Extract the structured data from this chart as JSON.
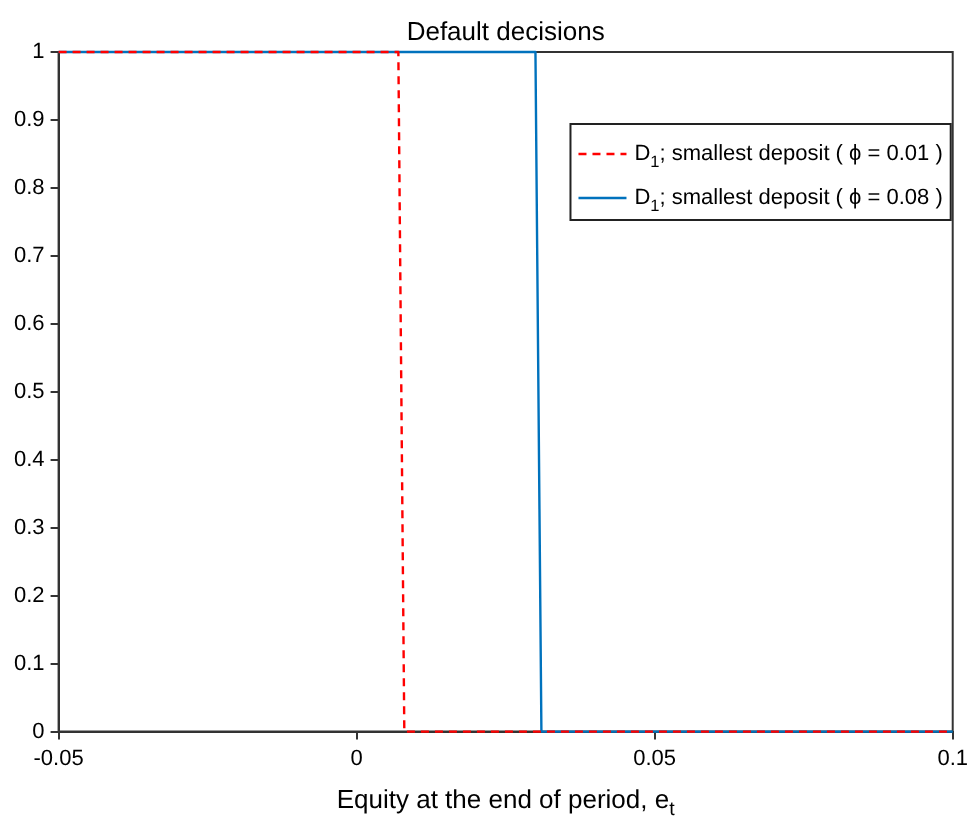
{
  "chart_data": {
    "type": "line",
    "title": "Default decisions",
    "xlabel": "Equity at the end of period, e$_{t}$",
    "series": [
      {
        "name": "D$_{1}$; smallest deposit ( ϕ = 0.01 )",
        "color": "#ff0000",
        "line_style": "dashed",
        "x": [
          -0.05,
          0.007,
          0.008,
          0.1
        ],
        "values": [
          1,
          1,
          0,
          0
        ]
      },
      {
        "name": "D$_{1}$; smallest deposit ( ϕ = 0.08 )",
        "color": "#0072bd",
        "line_style": "solid",
        "x": [
          -0.05,
          0.03,
          0.031,
          0.1
        ],
        "values": [
          1,
          1,
          0,
          0
        ]
      }
    ],
    "xlim": [
      -0.05,
      0.1
    ],
    "xticks": [
      -0.05,
      0,
      0.05,
      0.1
    ],
    "ylim": [
      0,
      1
    ],
    "yticks": [
      0,
      0.1,
      0.2,
      0.3,
      0.4,
      0.5,
      0.6,
      0.7,
      0.8,
      0.9,
      1
    ],
    "grid": false,
    "legend": "top right",
    "marker": "none"
  }
}
